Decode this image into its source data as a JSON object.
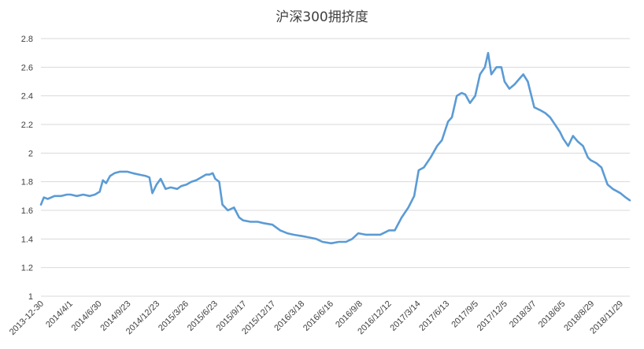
{
  "chart_data": {
    "type": "line",
    "title": "沪深300拥挤度",
    "xlabel": "",
    "ylabel": "",
    "ylim": [
      1,
      2.8
    ],
    "y_ticks": [
      "1",
      "1.2",
      "1.4",
      "1.6",
      "1.8",
      "2",
      "2.2",
      "2.4",
      "2.6",
      "2.8"
    ],
    "x_ticks": [
      "2013-12-30",
      "2014/4/1",
      "2014/6/30",
      "2014/9/23",
      "2014/12/23",
      "2015/3/26",
      "2015/6/23",
      "2015/9/17",
      "2015/12/17",
      "2016/3/18",
      "2016/6/16",
      "2016/9/8",
      "2016/12/12",
      "2017/3/14",
      "2017/6/13",
      "2017/9/5",
      "2017/12/5",
      "2018/3/7",
      "2018/6/5",
      "2018/8/29",
      "2018/11/29"
    ],
    "grid": true,
    "legend": "none",
    "line_color": "#5b9bd5",
    "series": [
      {
        "x": [
          "2013-12-30",
          "2014/1/8",
          "2014/1/20",
          "2014/2/10",
          "2014/3/3",
          "2014/3/20",
          "2014/4/1",
          "2014/4/20",
          "2014/5/10",
          "2014/5/30",
          "2014/6/15",
          "2014/6/30",
          "2014/7/10",
          "2014/7/20",
          "2014/8/1",
          "2014/8/15",
          "2014/9/1",
          "2014/9/23",
          "2014/10/10",
          "2014/10/30",
          "2014/11/20",
          "2014/12/1",
          "2014/12/10",
          "2014/12/23",
          "2015/1/5",
          "2015/1/20",
          "2015/2/5",
          "2015/2/25",
          "2015/3/10",
          "2015/3/26",
          "2015/4/10",
          "2015/4/25",
          "2015/5/10",
          "2015/5/25",
          "2015/6/5",
          "2015/6/15",
          "2015/6/23",
          "2015/7/5",
          "2015/7/15",
          "2015/8/1",
          "2015/8/20",
          "2015/9/5",
          "2015/9/17",
          "2015/10/10",
          "2015/11/1",
          "2015/11/20",
          "2015/12/17",
          "2016/1/10",
          "2016/2/1",
          "2016/2/20",
          "2016/3/18",
          "2016/4/10",
          "2016/5/1",
          "2016/5/20",
          "2016/6/16",
          "2016/7/10",
          "2016/8/1",
          "2016/8/20",
          "2016/9/8",
          "2016/10/1",
          "2016/10/25",
          "2016/11/15",
          "2016/12/12",
          "2016/12/30",
          "2017/1/20",
          "2017/2/10",
          "2017/2/28",
          "2017/3/14",
          "2017/3/30",
          "2017/4/20",
          "2017/5/10",
          "2017/5/25",
          "2017/6/13",
          "2017/6/25",
          "2017/7/10",
          "2017/7/25",
          "2017/8/5",
          "2017/8/20",
          "2017/9/5",
          "2017/9/20",
          "2017/10/5",
          "2017/10/15",
          "2017/10/25",
          "2017/11/10",
          "2017/11/25",
          "2017/12/5",
          "2017/12/20",
          "2018/1/5",
          "2018/1/20",
          "2018/2/1",
          "2018/2/15",
          "2018/3/7",
          "2018/3/25",
          "2018/4/10",
          "2018/4/25",
          "2018/5/10",
          "2018/5/25",
          "2018/6/5",
          "2018/6/20",
          "2018/7/5",
          "2018/7/20",
          "2018/8/5",
          "2018/8/20",
          "2018/8/29",
          "2018/9/15",
          "2018/10/1",
          "2018/10/20",
          "2018/11/5",
          "2018/11/29",
          "2018/12/15",
          "2018/12/28"
        ],
        "values": [
          1.64,
          1.69,
          1.68,
          1.7,
          1.7,
          1.71,
          1.71,
          1.7,
          1.71,
          1.7,
          1.71,
          1.73,
          1.81,
          1.79,
          1.84,
          1.86,
          1.87,
          1.87,
          1.86,
          1.85,
          1.84,
          1.83,
          1.72,
          1.78,
          1.82,
          1.75,
          1.76,
          1.75,
          1.77,
          1.78,
          1.8,
          1.81,
          1.83,
          1.85,
          1.85,
          1.86,
          1.82,
          1.8,
          1.64,
          1.6,
          1.62,
          1.55,
          1.53,
          1.52,
          1.52,
          1.51,
          1.5,
          1.46,
          1.44,
          1.43,
          1.42,
          1.41,
          1.4,
          1.38,
          1.37,
          1.38,
          1.38,
          1.4,
          1.44,
          1.43,
          1.43,
          1.43,
          1.46,
          1.46,
          1.55,
          1.62,
          1.7,
          1.88,
          1.9,
          1.97,
          2.05,
          2.09,
          2.22,
          2.25,
          2.4,
          2.42,
          2.41,
          2.35,
          2.4,
          2.55,
          2.6,
          2.7,
          2.55,
          2.6,
          2.6,
          2.5,
          2.45,
          2.48,
          2.52,
          2.55,
          2.5,
          2.32,
          2.3,
          2.28,
          2.25,
          2.2,
          2.15,
          2.1,
          2.05,
          2.12,
          2.08,
          2.05,
          1.97,
          1.95,
          1.93,
          1.9,
          1.78,
          1.75,
          1.72,
          1.69,
          1.67
        ]
      }
    ]
  }
}
